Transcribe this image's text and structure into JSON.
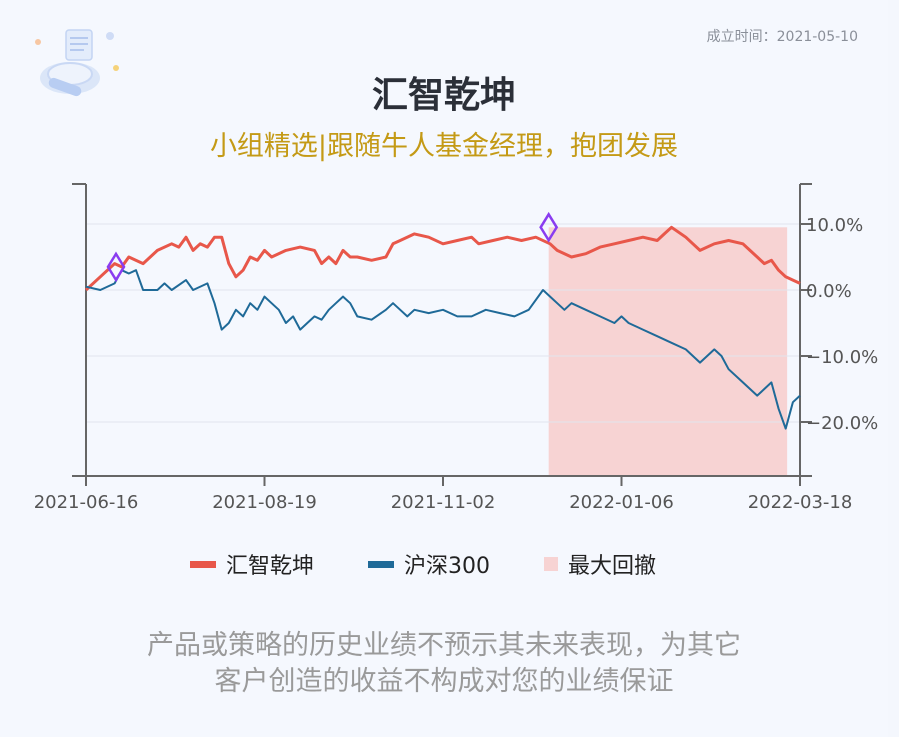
{
  "header": {
    "founded_label": "成立时间：2021-05-10",
    "title": "汇智乾坤",
    "subtitle": "小组精选|跟随牛人基金经理，抱团发展"
  },
  "legend": {
    "items": [
      {
        "label": "汇智乾坤",
        "color": "#e8574a"
      },
      {
        "label": "沪深300",
        "color": "#1f6a98"
      },
      {
        "label": "最大回撤",
        "color": "#f7d3d3"
      }
    ]
  },
  "disclaimer": {
    "line1": "产品或策略的历史业绩不预示其未来表现，为其它",
    "line2": "客户创造的收益不构成对您的业绩保证"
  },
  "chart_data": {
    "type": "line",
    "x_ticks": [
      "2021-06-16",
      "2021-08-19",
      "2021-11-02",
      "2022-01-06",
      "2022-03-18"
    ],
    "y_ticks": [
      "10.0%",
      "0.0%",
      "−10.0%",
      "−20.0%"
    ],
    "ylim": [
      -28,
      16
    ],
    "xlim": [
      0,
      100
    ],
    "grid": true,
    "legend_position": "bottom",
    "series": [
      {
        "name": "汇智乾坤",
        "color": "#e8574a",
        "points": [
          [
            0,
            0
          ],
          [
            2,
            2
          ],
          [
            4,
            4
          ],
          [
            5,
            3.5
          ],
          [
            6,
            5
          ],
          [
            8,
            4
          ],
          [
            10,
            6
          ],
          [
            12,
            7
          ],
          [
            13,
            6.5
          ],
          [
            14,
            8
          ],
          [
            15,
            6
          ],
          [
            16,
            7
          ],
          [
            17,
            6.5
          ],
          [
            18,
            8
          ],
          [
            19,
            8
          ],
          [
            20,
            4
          ],
          [
            21,
            2
          ],
          [
            22,
            3
          ],
          [
            23,
            5
          ],
          [
            24,
            4.5
          ],
          [
            25,
            6
          ],
          [
            26,
            5
          ],
          [
            28,
            6
          ],
          [
            30,
            6.5
          ],
          [
            32,
            6
          ],
          [
            33,
            4
          ],
          [
            34,
            5
          ],
          [
            35,
            4
          ],
          [
            36,
            6
          ],
          [
            37,
            5
          ],
          [
            38,
            5
          ],
          [
            40,
            4.5
          ],
          [
            42,
            5
          ],
          [
            43,
            7
          ],
          [
            44,
            7.5
          ],
          [
            46,
            8.5
          ],
          [
            48,
            8
          ],
          [
            50,
            7
          ],
          [
            52,
            7.5
          ],
          [
            54,
            8
          ],
          [
            55,
            7
          ],
          [
            57,
            7.5
          ],
          [
            59,
            8
          ],
          [
            61,
            7.5
          ],
          [
            63,
            8
          ],
          [
            65,
            7
          ],
          [
            66,
            6
          ],
          [
            68,
            5
          ],
          [
            70,
            5.5
          ],
          [
            72,
            6.5
          ],
          [
            74,
            7
          ],
          [
            76,
            7.5
          ],
          [
            78,
            8
          ],
          [
            80,
            7.5
          ],
          [
            81,
            8.5
          ],
          [
            82,
            9.5
          ],
          [
            84,
            8
          ],
          [
            85,
            7
          ],
          [
            86,
            6
          ],
          [
            88,
            7
          ],
          [
            90,
            7.5
          ],
          [
            92,
            7
          ],
          [
            93,
            6
          ],
          [
            94,
            5
          ],
          [
            95,
            4
          ],
          [
            96,
            4.5
          ],
          [
            97,
            3
          ],
          [
            98,
            2
          ],
          [
            99,
            1.5
          ],
          [
            100,
            1
          ]
        ],
        "note": "x is relative position 0..100 across date axis (0=2021-06-16, 100=2022-03-18); values in %"
      },
      {
        "name": "沪深300",
        "color": "#1f6a98",
        "points": [
          [
            0,
            0.5
          ],
          [
            2,
            0
          ],
          [
            4,
            1
          ],
          [
            5,
            3
          ],
          [
            6,
            2.5
          ],
          [
            7,
            3
          ],
          [
            8,
            0
          ],
          [
            10,
            0
          ],
          [
            11,
            1
          ],
          [
            12,
            0
          ],
          [
            14,
            1.5
          ],
          [
            15,
            0
          ],
          [
            17,
            1
          ],
          [
            18,
            -2
          ],
          [
            19,
            -6
          ],
          [
            20,
            -5
          ],
          [
            21,
            -3
          ],
          [
            22,
            -4
          ],
          [
            23,
            -2
          ],
          [
            24,
            -3
          ],
          [
            25,
            -1
          ],
          [
            26,
            -2
          ],
          [
            27,
            -3
          ],
          [
            28,
            -5
          ],
          [
            29,
            -4
          ],
          [
            30,
            -6
          ],
          [
            31,
            -5
          ],
          [
            32,
            -4
          ],
          [
            33,
            -4.5
          ],
          [
            34,
            -3
          ],
          [
            35,
            -2
          ],
          [
            36,
            -1
          ],
          [
            37,
            -2
          ],
          [
            38,
            -4
          ],
          [
            40,
            -4.5
          ],
          [
            42,
            -3
          ],
          [
            43,
            -2
          ],
          [
            44,
            -3
          ],
          [
            45,
            -4
          ],
          [
            46,
            -3
          ],
          [
            48,
            -3.5
          ],
          [
            50,
            -3
          ],
          [
            52,
            -4
          ],
          [
            54,
            -4
          ],
          [
            56,
            -3
          ],
          [
            58,
            -3.5
          ],
          [
            60,
            -4
          ],
          [
            62,
            -3
          ],
          [
            64,
            0
          ],
          [
            65,
            -1
          ],
          [
            66,
            -2
          ],
          [
            67,
            -3
          ],
          [
            68,
            -2
          ],
          [
            70,
            -3
          ],
          [
            72,
            -4
          ],
          [
            74,
            -5
          ],
          [
            75,
            -4
          ],
          [
            76,
            -5
          ],
          [
            78,
            -6
          ],
          [
            80,
            -7
          ],
          [
            82,
            -8
          ],
          [
            84,
            -9
          ],
          [
            85,
            -10
          ],
          [
            86,
            -11
          ],
          [
            88,
            -9
          ],
          [
            89,
            -10
          ],
          [
            90,
            -12
          ],
          [
            92,
            -14
          ],
          [
            94,
            -16
          ],
          [
            95,
            -15
          ],
          [
            96,
            -14
          ],
          [
            97,
            -18
          ],
          [
            98,
            -21
          ],
          [
            99,
            -17
          ],
          [
            100,
            -16
          ]
        ]
      }
    ],
    "drawdown_region": {
      "x_start": 64.8,
      "x_end": 98.2,
      "label": "最大回撤"
    },
    "markers": [
      {
        "x": 4.2,
        "y": 3.5,
        "shape": "diamond",
        "color": "#8a3cf0"
      },
      {
        "x": 64.8,
        "y": 9.5,
        "shape": "diamond",
        "color": "#8a3cf0"
      }
    ]
  }
}
